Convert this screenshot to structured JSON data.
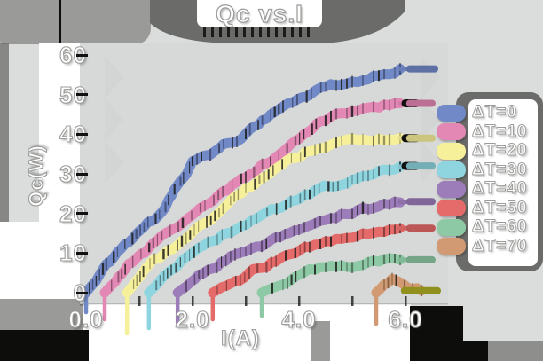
{
  "title": "Qc vs.I",
  "chart_data": {
    "type": "line",
    "title": "Qc vs.I",
    "xlabel": "I(A)",
    "ylabel": "Qc(W)",
    "xlim": [
      0,
      6.9
    ],
    "ylim": [
      0,
      60
    ],
    "x_ticks": [
      "0.0",
      "2.0",
      "4.0",
      "6.0"
    ],
    "x_tick_values": [
      0,
      2,
      4,
      6
    ],
    "y_ticks": [
      "60",
      "50",
      "40",
      "30",
      "20",
      "10",
      "0"
    ],
    "y_tick_values": [
      60,
      50,
      40,
      30,
      20,
      10,
      0
    ],
    "grid": false,
    "legend_position": "right",
    "style": "sketchy-paper-cutout",
    "series": [
      {
        "name": "ΔT=0",
        "color": "#7289c8",
        "cap_value": 56.5,
        "cap_color": null,
        "points": [
          [
            0,
            0
          ],
          [
            0.38,
            6.7
          ],
          [
            0.8,
            13
          ],
          [
            1.38,
            20
          ],
          [
            2.0,
            33
          ],
          [
            2.5,
            36.5
          ],
          [
            3.0,
            40
          ],
          [
            3.7,
            47
          ],
          [
            4.5,
            52
          ],
          [
            5.2,
            54
          ],
          [
            5.9,
            56.5
          ]
        ]
      },
      {
        "name": "ΔT=10",
        "color": "#e388b4",
        "cap_value": 47.8,
        "cap_color": null,
        "points": [
          [
            0.35,
            0
          ],
          [
            0.8,
            7
          ],
          [
            1.65,
            16.5
          ],
          [
            2.4,
            24
          ],
          [
            3.0,
            29
          ],
          [
            3.7,
            36
          ],
          [
            4.4,
            43.5
          ],
          [
            5.0,
            46
          ],
          [
            5.9,
            47.8
          ]
        ]
      },
      {
        "name": "ΔT=20",
        "color": "#f7f09b",
        "cap_value": 39,
        "cap_color": null,
        "points": [
          [
            0.77,
            0
          ],
          [
            1.2,
            7
          ],
          [
            1.8,
            13
          ],
          [
            2.5,
            20
          ],
          [
            3.0,
            26
          ],
          [
            3.6,
            32
          ],
          [
            4.2,
            36
          ],
          [
            5.0,
            38
          ],
          [
            5.9,
            39
          ]
        ]
      },
      {
        "name": "ΔT=30",
        "color": "#8ed5e0",
        "cap_value": 32,
        "cap_color": null,
        "points": [
          [
            1.18,
            0
          ],
          [
            1.6,
            6
          ],
          [
            2.2,
            12
          ],
          [
            3.0,
            17.5
          ],
          [
            3.4,
            20
          ],
          [
            4.2,
            25
          ],
          [
            5.0,
            29
          ],
          [
            5.9,
            31.8
          ]
        ]
      },
      {
        "name": "ΔT=40",
        "color": "#9d7cba",
        "cap_value": 23,
        "cap_color": null,
        "points": [
          [
            1.72,
            0
          ],
          [
            2.2,
            5
          ],
          [
            2.8,
            9.5
          ],
          [
            3.3,
            12
          ],
          [
            4.0,
            16.5
          ],
          [
            5.0,
            20.5
          ],
          [
            5.9,
            22.8
          ]
        ]
      },
      {
        "name": "ΔT=50",
        "color": "#e56a6a",
        "cap_value": 16.3,
        "cap_color": null,
        "points": [
          [
            2.38,
            0
          ],
          [
            2.9,
            3.5
          ],
          [
            3.3,
            6.5
          ],
          [
            4.2,
            11.6
          ],
          [
            4.9,
            14
          ],
          [
            5.6,
            15.8
          ],
          [
            5.9,
            16.3
          ]
        ]
      },
      {
        "name": "ΔT=60",
        "color": "#8cc9a4",
        "cap_value": 8.3,
        "cap_color": null,
        "points": [
          [
            3.3,
            0
          ],
          [
            3.7,
            2.5
          ],
          [
            4.1,
            5.6
          ],
          [
            4.8,
            6.8
          ],
          [
            5.5,
            7.8
          ],
          [
            5.9,
            8.3
          ]
        ]
      },
      {
        "name": "ΔT=70",
        "color": "#d29a72",
        "cap_value": 0.5,
        "cap_color": "#8f901e",
        "points": [
          [
            5.45,
            0
          ],
          [
            5.75,
            3.5
          ],
          [
            6.05,
            1
          ],
          [
            6.3,
            0.5
          ]
        ]
      }
    ]
  },
  "colors": {
    "page_bg": "#dadddb",
    "plot_bg": "#d6d9d7",
    "facet_shade": "#cfd2d0",
    "paper": "#ffffff",
    "shadow_dark": "#6b6b69",
    "shadow_mid": "#9a9a98",
    "shadow_gray": "#8e8e8c",
    "ink": "#0d0d0b",
    "text_fill": "#ffffff",
    "text_outline": "#9b9b99"
  }
}
